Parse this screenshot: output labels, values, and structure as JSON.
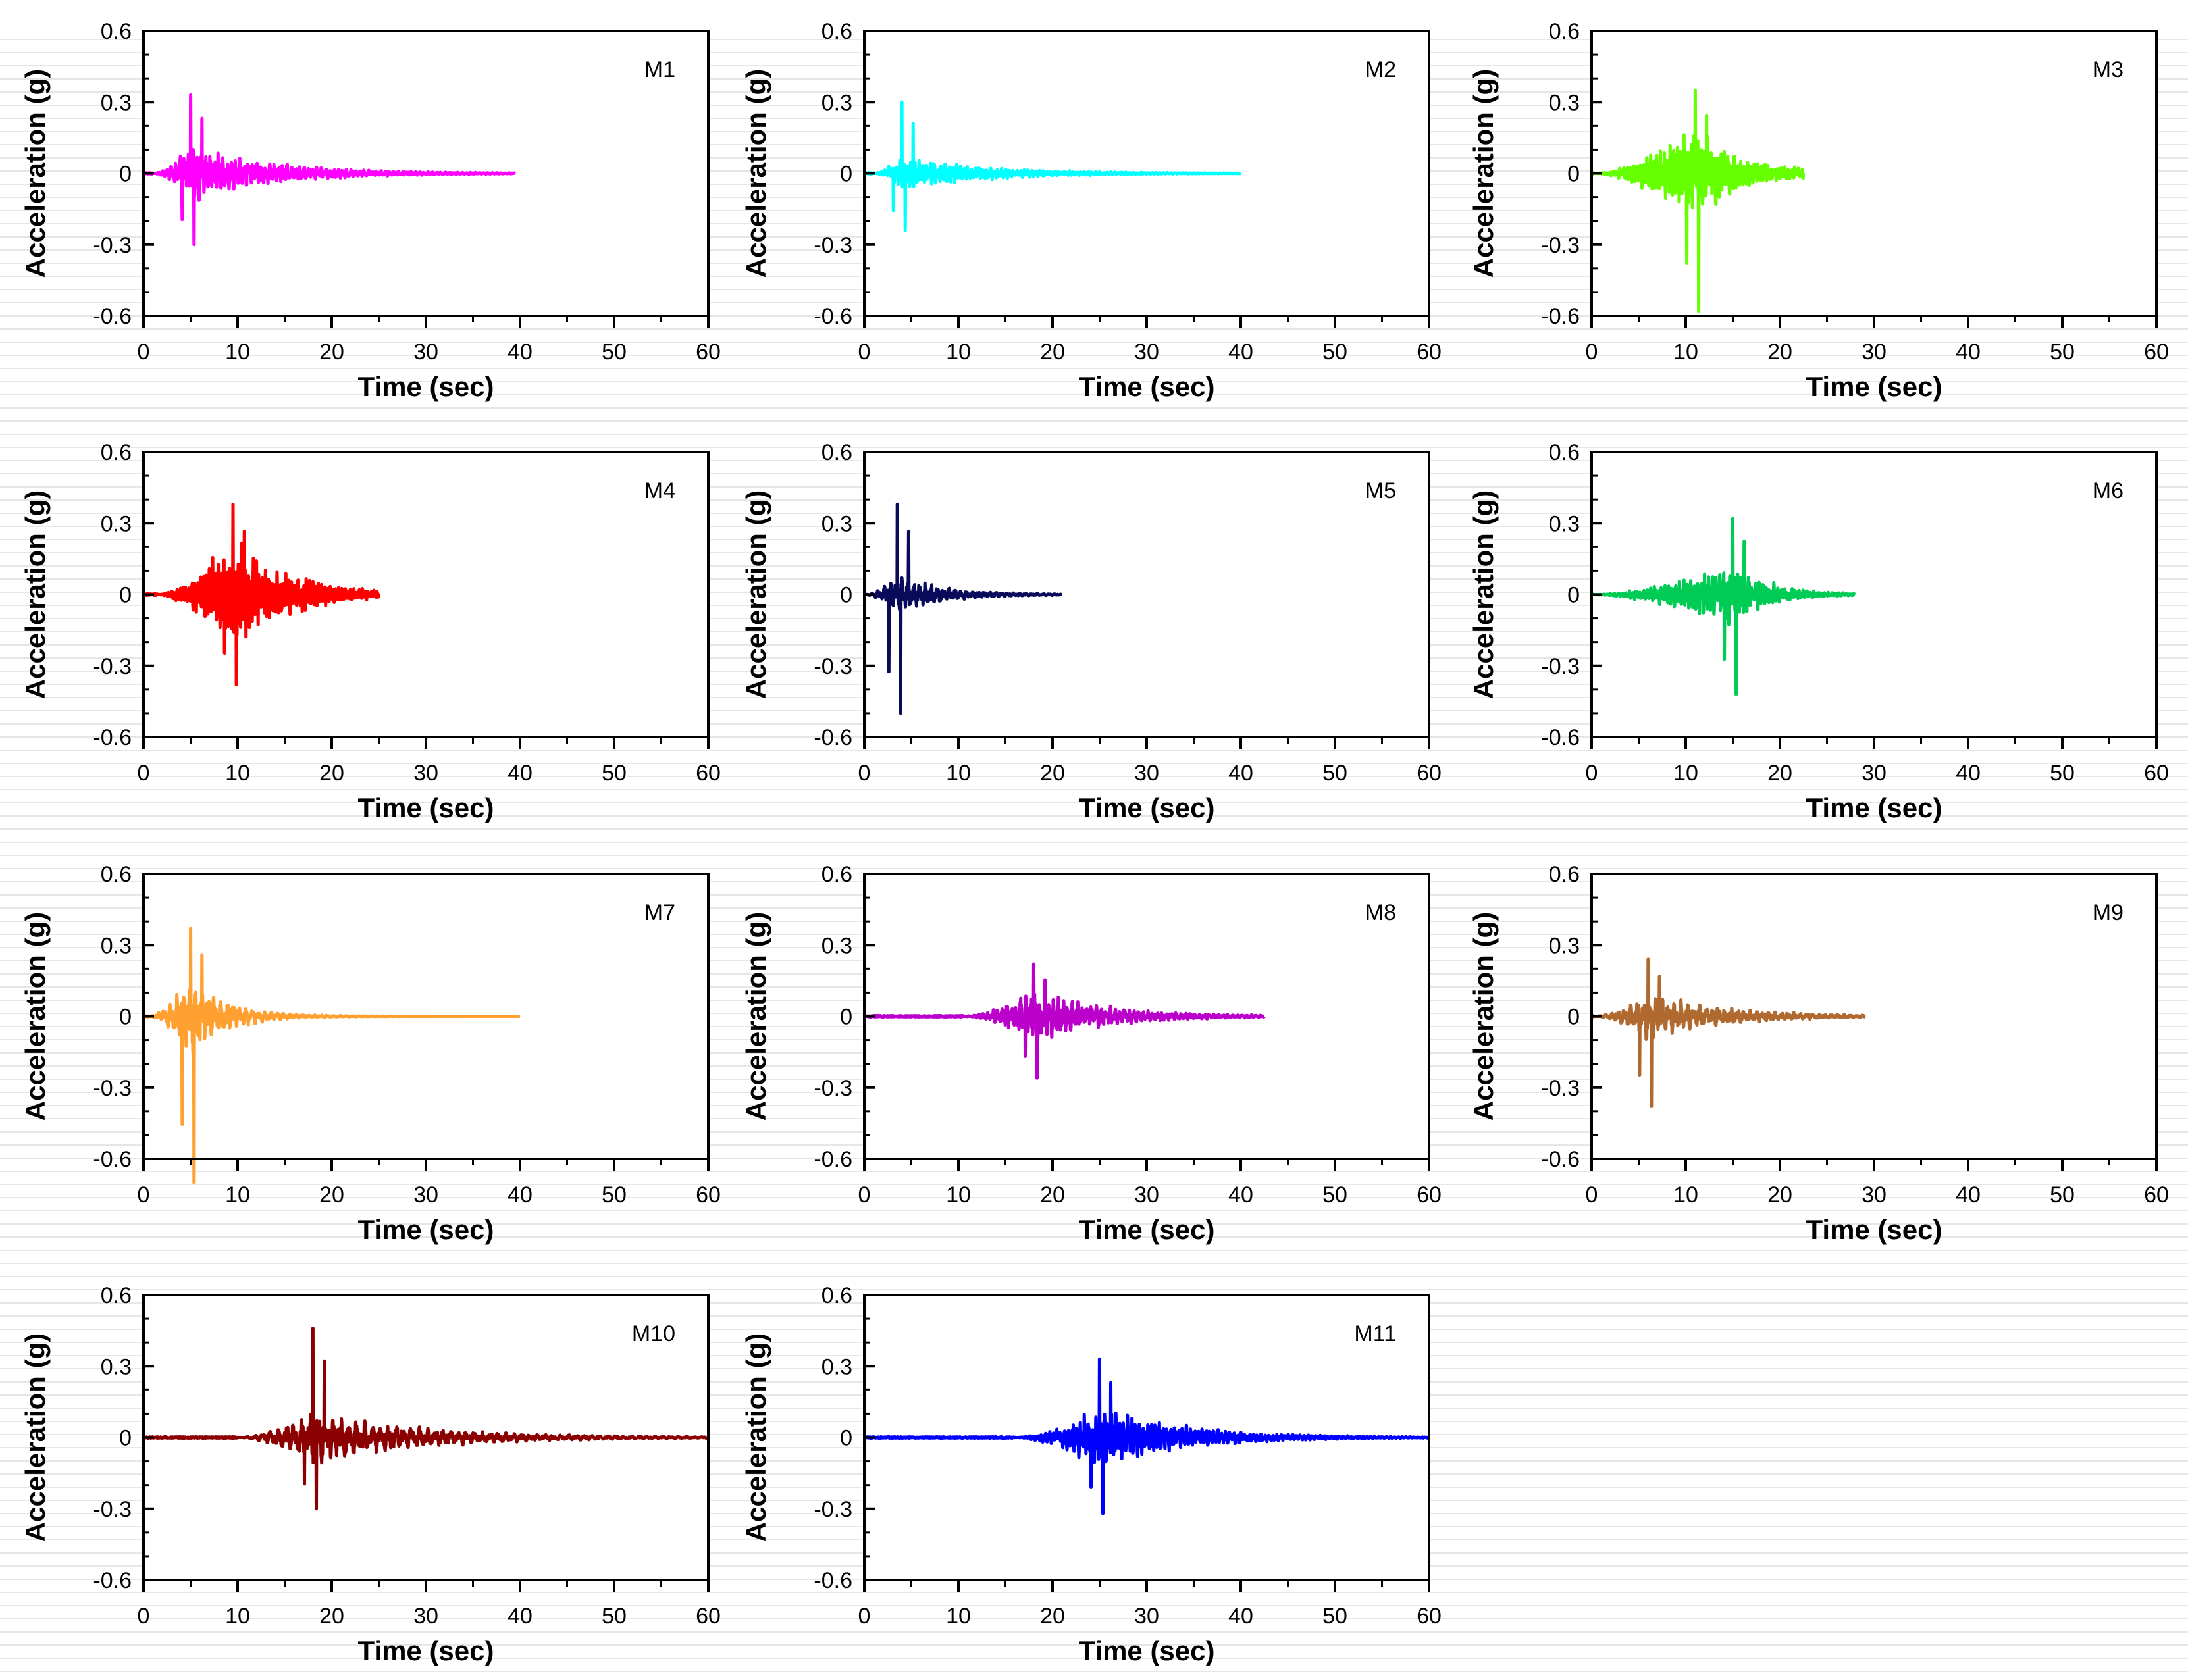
{
  "chart_data": [
    {
      "type": "line",
      "label": "M1",
      "color": "#ff00ff",
      "duration": 39.5,
      "onset": 1.0,
      "peak_time": 5.0,
      "pga_pos": 0.33,
      "pga_neg": -0.3,
      "env_rise": 2.5,
      "env_decay": 9.0,
      "base_amp": 0.14,
      "freq": 2.2,
      "xlabel": "Time (sec)",
      "ylabel": "Acceleration (g)",
      "xlim": [
        0,
        60
      ],
      "ylim": [
        -0.6,
        0.6
      ],
      "xticks": [
        "0",
        "10",
        "20",
        "30",
        "40",
        "50",
        "60"
      ],
      "yticks": [
        "-0.6",
        "-0.3",
        "0",
        "0.3",
        "0.6"
      ]
    },
    {
      "type": "line",
      "label": "M2",
      "color": "#00ffff",
      "duration": 40.0,
      "onset": 1.0,
      "peak_time": 4.0,
      "pga_pos": 0.3,
      "pga_neg": -0.24,
      "env_rise": 2.0,
      "env_decay": 9.0,
      "base_amp": 0.09,
      "freq": 2.5,
      "xlabel": "Time (sec)",
      "ylabel": "Acceleration (g)",
      "xlim": [
        0,
        60
      ],
      "ylim": [
        -0.6,
        0.6
      ],
      "xticks": [
        "0",
        "10",
        "20",
        "30",
        "40",
        "50",
        "60"
      ],
      "yticks": [
        "-0.6",
        "-0.3",
        "0",
        "0.3",
        "0.6"
      ]
    },
    {
      "type": "line",
      "label": "M3",
      "color": "#66ff00",
      "duration": 22.5,
      "onset": 0.3,
      "peak_time": 11.0,
      "pga_pos": 0.35,
      "pga_neg": -0.58,
      "env_rise": 4.0,
      "env_decay": 5.0,
      "base_amp": 0.24,
      "freq": 2.8,
      "xlabel": "Time (sec)",
      "ylabel": "Acceleration (g)",
      "xlim": [
        0,
        60
      ],
      "ylim": [
        -0.6,
        0.6
      ],
      "xticks": [
        "0",
        "10",
        "20",
        "30",
        "40",
        "50",
        "60"
      ],
      "yticks": [
        "-0.6",
        "-0.3",
        "0",
        "0.3",
        "0.6"
      ]
    },
    {
      "type": "line",
      "label": "M4",
      "color": "#ff0000",
      "duration": 25.0,
      "onset": 1.5,
      "peak_time": 9.5,
      "pga_pos": 0.38,
      "pga_neg": -0.38,
      "env_rise": 3.0,
      "env_decay": 6.0,
      "base_amp": 0.3,
      "freq": 3.2,
      "xlabel": "Time (sec)",
      "ylabel": "Acceleration (g)",
      "xlim": [
        0,
        60
      ],
      "ylim": [
        -0.6,
        0.6
      ],
      "xticks": [
        "0",
        "10",
        "20",
        "30",
        "40",
        "50",
        "60"
      ],
      "yticks": [
        "-0.6",
        "-0.3",
        "0",
        "0.3",
        "0.6"
      ]
    },
    {
      "type": "line",
      "label": "M5",
      "color": "#0a0a5a",
      "duration": 21.0,
      "onset": 0.1,
      "peak_time": 3.5,
      "pga_pos": 0.38,
      "pga_neg": -0.5,
      "env_rise": 1.5,
      "env_decay": 5.0,
      "base_amp": 0.1,
      "freq": 1.6,
      "xlabel": "Time (sec)",
      "ylabel": "Acceleration (g)",
      "xlim": [
        0,
        60
      ],
      "ylim": [
        -0.6,
        0.6
      ],
      "xticks": [
        "0",
        "10",
        "20",
        "30",
        "40",
        "50",
        "60"
      ],
      "yticks": [
        "-0.6",
        "-0.3",
        "0",
        "0.3",
        "0.6"
      ]
    },
    {
      "type": "line",
      "label": "M6",
      "color": "#00cc55",
      "duration": 28.0,
      "onset": 0.1,
      "peak_time": 15.0,
      "pga_pos": 0.32,
      "pga_neg": -0.42,
      "env_rise": 4.0,
      "env_decay": 4.0,
      "base_amp": 0.16,
      "freq": 2.6,
      "xlabel": "Time (sec)",
      "ylabel": "Acceleration (g)",
      "xlim": [
        0,
        60
      ],
      "ylim": [
        -0.6,
        0.6
      ],
      "xticks": [
        "0",
        "10",
        "20",
        "30",
        "40",
        "50",
        "60"
      ],
      "yticks": [
        "-0.6",
        "-0.3",
        "0",
        "0.3",
        "0.6"
      ]
    },
    {
      "type": "line",
      "label": "M7",
      "color": "#ffa030",
      "duration": 40.0,
      "onset": 0.5,
      "peak_time": 5.0,
      "pga_pos": 0.37,
      "pga_neg": -0.7,
      "env_rise": 2.0,
      "env_decay": 4.0,
      "base_amp": 0.2,
      "freq": 1.5,
      "xlabel": "Time (sec)",
      "ylabel": "Acceleration (g)",
      "xlim": [
        0,
        60
      ],
      "ylim": [
        -0.6,
        0.6
      ],
      "xticks": [
        "0",
        "10",
        "20",
        "30",
        "40",
        "50",
        "60"
      ],
      "yticks": [
        "-0.6",
        "-0.3",
        "0",
        "0.3",
        "0.6"
      ]
    },
    {
      "type": "line",
      "label": "M8",
      "color": "#bb00cc",
      "duration": 42.5,
      "onset": 10.5,
      "peak_time": 18.0,
      "pga_pos": 0.22,
      "pga_neg": -0.26,
      "env_rise": 3.0,
      "env_decay": 8.0,
      "base_amp": 0.13,
      "freq": 2.0,
      "xlabel": "Time (sec)",
      "ylabel": "Acceleration (g)",
      "xlim": [
        0,
        60
      ],
      "ylim": [
        -0.6,
        0.6
      ],
      "xticks": [
        "0",
        "10",
        "20",
        "30",
        "40",
        "50",
        "60"
      ],
      "yticks": [
        "-0.6",
        "-0.3",
        "0",
        "0.3",
        "0.6"
      ]
    },
    {
      "type": "line",
      "label": "M9",
      "color": "#b06a30",
      "duration": 29.0,
      "onset": 0.3,
      "peak_time": 6.0,
      "pga_pos": 0.24,
      "pga_neg": -0.38,
      "env_rise": 2.5,
      "env_decay": 8.0,
      "base_amp": 0.12,
      "freq": 1.5,
      "xlabel": "Time (sec)",
      "ylabel": "Acceleration (g)",
      "xlim": [
        0,
        60
      ],
      "ylim": [
        -0.6,
        0.6
      ],
      "xticks": [
        "0",
        "10",
        "20",
        "30",
        "40",
        "50",
        "60"
      ],
      "yticks": [
        "-0.6",
        "-0.3",
        "0",
        "0.3",
        "0.6"
      ]
    },
    {
      "type": "line",
      "label": "M10",
      "color": "#8b0000",
      "duration": 60.0,
      "onset": 10.0,
      "peak_time": 18.0,
      "pga_pos": 0.46,
      "pga_neg": -0.3,
      "env_rise": 4.0,
      "env_decay": 12.0,
      "base_amp": 0.13,
      "freq": 1.2,
      "xlabel": "Time (sec)",
      "ylabel": "Acceleration (g)",
      "xlim": [
        0,
        60
      ],
      "ylim": [
        -0.6,
        0.6
      ],
      "xticks": [
        "0",
        "10",
        "20",
        "30",
        "40",
        "50",
        "60"
      ],
      "yticks": [
        "-0.6",
        "-0.3",
        "0",
        "0.3",
        "0.6"
      ]
    },
    {
      "type": "line",
      "label": "M11",
      "color": "#0000ff",
      "duration": 60.0,
      "onset": 16.0,
      "peak_time": 25.0,
      "pga_pos": 0.33,
      "pga_neg": -0.32,
      "env_rise": 4.0,
      "env_decay": 9.0,
      "base_amp": 0.16,
      "freq": 2.4,
      "xlabel": "Time (sec)",
      "ylabel": "Acceleration (g)",
      "xlim": [
        0,
        60
      ],
      "ylim": [
        -0.6,
        0.6
      ],
      "xticks": [
        "0",
        "10",
        "20",
        "30",
        "40",
        "50",
        "60"
      ],
      "yticks": [
        "-0.6",
        "-0.3",
        "0",
        "0.3",
        "0.6"
      ]
    }
  ]
}
